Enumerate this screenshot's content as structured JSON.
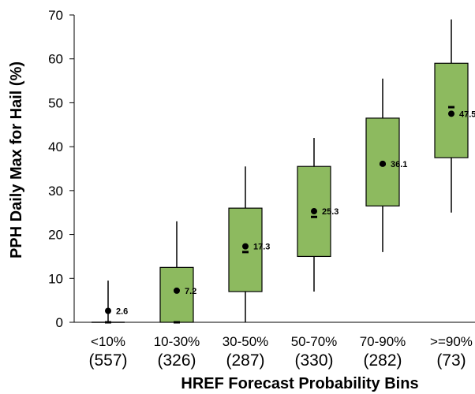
{
  "chart_data": {
    "type": "boxplot",
    "xlabel": "HREF Forecast Probability Bins",
    "ylabel": "PPH Daily Max for Hail (%)",
    "ylim": [
      0,
      70
    ],
    "yticks": [
      0,
      10,
      20,
      30,
      40,
      50,
      60,
      70
    ],
    "grid": false,
    "legend": "none",
    "box_color": "#8dba5f",
    "box_edge_color": "#000000",
    "categories": [
      "<10%",
      "10-30%",
      "30-50%",
      "50-70%",
      "70-90%",
      ">=90%"
    ],
    "counts": [
      "(557)",
      "(326)",
      "(287)",
      "(330)",
      "(282)",
      "(73)"
    ],
    "boxes": [
      {
        "whisker_low": 0,
        "q1": 0,
        "median": 0,
        "q3": 0,
        "whisker_high": 9.5,
        "mean": 2.6,
        "mean_label": "2.6"
      },
      {
        "whisker_low": 0,
        "q1": 0,
        "median": 0,
        "q3": 12.5,
        "whisker_high": 23,
        "mean": 7.2,
        "mean_label": "7.2"
      },
      {
        "whisker_low": 0,
        "q1": 7,
        "median": 16,
        "q3": 26,
        "whisker_high": 35.5,
        "mean": 17.3,
        "mean_label": "17.3"
      },
      {
        "whisker_low": 7,
        "q1": 15,
        "median": 24,
        "q3": 35.5,
        "whisker_high": 42,
        "mean": 25.3,
        "mean_label": "25.3"
      },
      {
        "whisker_low": 16,
        "q1": 26.5,
        "median": 36,
        "q3": 46.5,
        "whisker_high": 55.5,
        "mean": 36.1,
        "mean_label": "36.1"
      },
      {
        "whisker_low": 25,
        "q1": 37.5,
        "median": 49,
        "q3": 59,
        "whisker_high": 69,
        "mean": 47.5,
        "mean_label": "47.5"
      }
    ]
  }
}
